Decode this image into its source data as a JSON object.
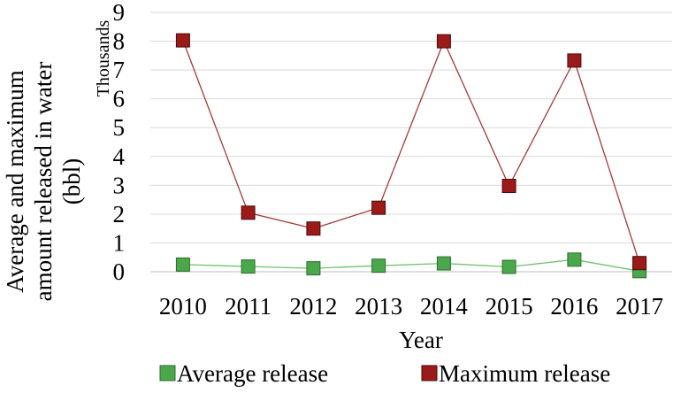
{
  "chart_data": {
    "type": "line",
    "x": [
      "2010",
      "2011",
      "2012",
      "2013",
      "2014",
      "2015",
      "2016",
      "2017"
    ],
    "ylim": [
      0,
      9
    ],
    "yticks": [
      "0",
      "1",
      "2",
      "3",
      "4",
      "5",
      "6",
      "7",
      "8",
      "9"
    ],
    "ylabel_lines": [
      "Average and maximum",
      "amount released in water",
      "(bbl)"
    ],
    "unit_label": "Thousands",
    "xlabel": "Year",
    "grid": "horizontal",
    "legend_position": "bottom",
    "series": [
      {
        "name": "Average release",
        "values": [
          0.25,
          0.18,
          0.12,
          0.21,
          0.29,
          0.17,
          0.42,
          0.02
        ],
        "marker_color": "#4aa84a",
        "marker_edge": "#2f6b2f",
        "line_color": "#6cc46c"
      },
      {
        "name": "Maximum release",
        "values": [
          8.03,
          2.05,
          1.5,
          2.22,
          8.0,
          2.98,
          7.33,
          0.3
        ],
        "marker_color": "#9b1a1a",
        "marker_edge": "#4a0c0c",
        "line_color": "#a33a3a"
      }
    ]
  }
}
